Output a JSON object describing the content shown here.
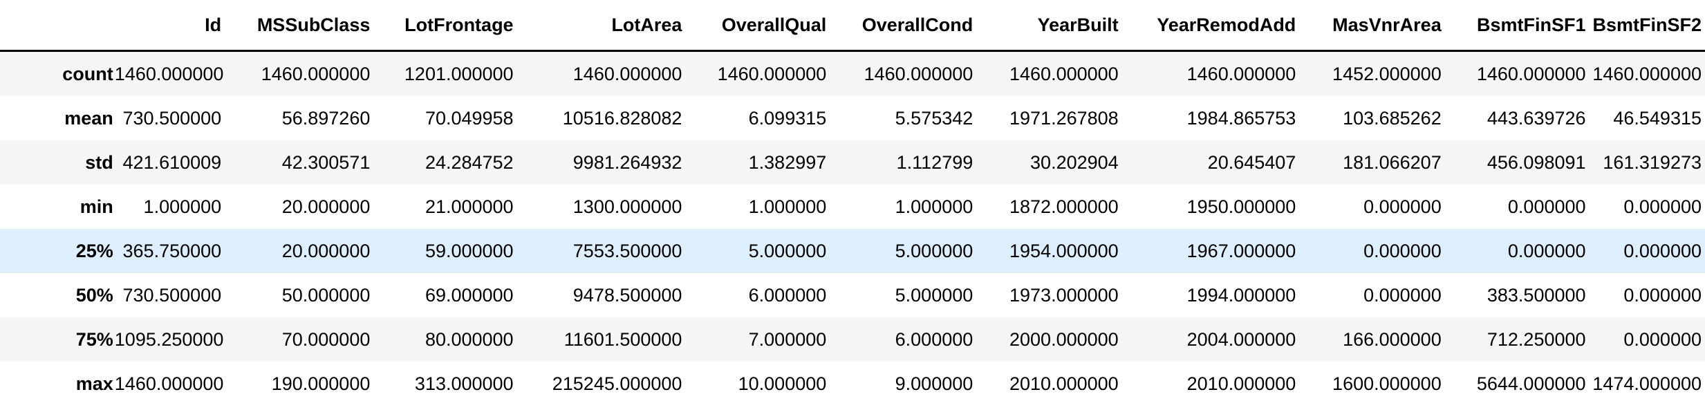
{
  "table": {
    "index_header": "",
    "columns": [
      "Id",
      "MSSubClass",
      "LotFrontage",
      "LotArea",
      "OverallQual",
      "OverallCond",
      "YearBuilt",
      "YearRemodAdd",
      "MasVnrArea",
      "BsmtFinSF1",
      "BsmtFinSF2"
    ],
    "highlighted_row_index": 4,
    "rows": [
      {
        "label": "count",
        "values": [
          "1460.000000",
          "1460.000000",
          "1201.000000",
          "1460.000000",
          "1460.000000",
          "1460.000000",
          "1460.000000",
          "1460.000000",
          "1452.000000",
          "1460.000000",
          "1460.000000"
        ]
      },
      {
        "label": "mean",
        "values": [
          "730.500000",
          "56.897260",
          "70.049958",
          "10516.828082",
          "6.099315",
          "5.575342",
          "1971.267808",
          "1984.865753",
          "103.685262",
          "443.639726",
          "46.549315"
        ]
      },
      {
        "label": "std",
        "values": [
          "421.610009",
          "42.300571",
          "24.284752",
          "9981.264932",
          "1.382997",
          "1.112799",
          "30.202904",
          "20.645407",
          "181.066207",
          "456.098091",
          "161.319273"
        ]
      },
      {
        "label": "min",
        "values": [
          "1.000000",
          "20.000000",
          "21.000000",
          "1300.000000",
          "1.000000",
          "1.000000",
          "1872.000000",
          "1950.000000",
          "0.000000",
          "0.000000",
          "0.000000"
        ]
      },
      {
        "label": "25%",
        "values": [
          "365.750000",
          "20.000000",
          "59.000000",
          "7553.500000",
          "5.000000",
          "5.000000",
          "1954.000000",
          "1967.000000",
          "0.000000",
          "0.000000",
          "0.000000"
        ]
      },
      {
        "label": "50%",
        "values": [
          "730.500000",
          "50.000000",
          "69.000000",
          "9478.500000",
          "6.000000",
          "5.000000",
          "1973.000000",
          "1994.000000",
          "0.000000",
          "383.500000",
          "0.000000"
        ]
      },
      {
        "label": "75%",
        "values": [
          "1095.250000",
          "70.000000",
          "80.000000",
          "11601.500000",
          "7.000000",
          "6.000000",
          "2000.000000",
          "2004.000000",
          "166.000000",
          "712.250000",
          "0.000000"
        ]
      },
      {
        "label": "max",
        "values": [
          "1460.000000",
          "190.000000",
          "313.000000",
          "215245.000000",
          "10.000000",
          "9.000000",
          "2010.000000",
          "2010.000000",
          "1600.000000",
          "5644.000000",
          "1474.000000"
        ]
      }
    ]
  },
  "colors": {
    "header_rule": "#000000",
    "row_stripe": "#f5f5f5",
    "row_hover": "#ddeefc"
  }
}
